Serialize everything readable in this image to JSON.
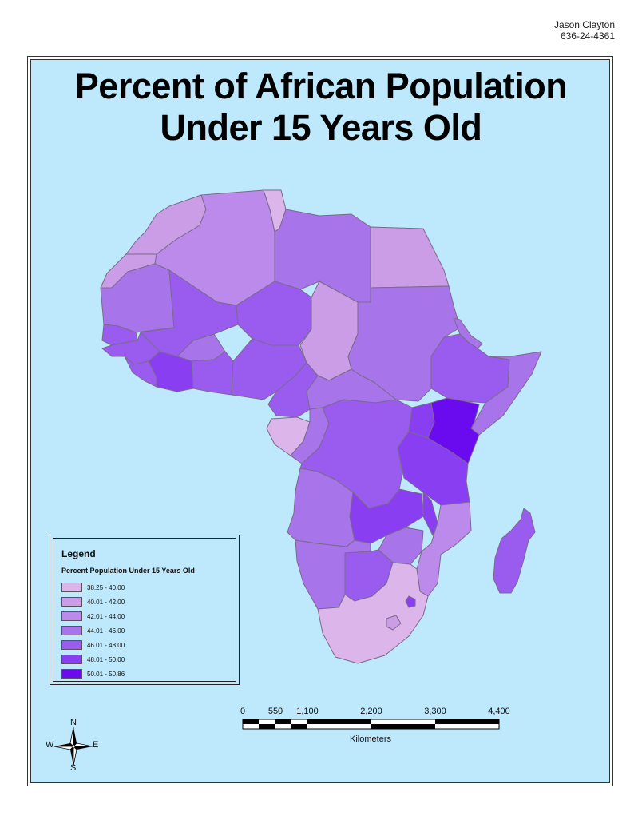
{
  "author": {
    "name": "Jason Clayton",
    "id": "636-24-4361"
  },
  "title": {
    "line1": "Percent of African Population",
    "line2": "Under 15 Years Old"
  },
  "legend": {
    "heading": "Legend",
    "subtitle": "Percent Population Under 15 Years Old",
    "classes": [
      {
        "label": "38.25 - 40.00",
        "color": "#dcb5ea"
      },
      {
        "label": "40.01 - 42.00",
        "color": "#cb9de6"
      },
      {
        "label": "42.01 - 44.00",
        "color": "#bb8aea"
      },
      {
        "label": "44.01 - 46.00",
        "color": "#a874ea"
      },
      {
        "label": "46.01 - 48.00",
        "color": "#9a5cee"
      },
      {
        "label": "48.01 - 50.00",
        "color": "#8a3ef2"
      },
      {
        "label": "50.01 - 50.86",
        "color": "#6a0aee"
      }
    ]
  },
  "scale_bar": {
    "ticks": [
      "0",
      "550",
      "1,100",
      "2,200",
      "3,300",
      "4,400"
    ],
    "unit": "Kilometers"
  },
  "compass": {
    "n": "N",
    "s": "S",
    "e": "E",
    "w": "W"
  },
  "colors": {
    "ocean": "#bee8fb",
    "border": "#7a6a8a"
  }
}
